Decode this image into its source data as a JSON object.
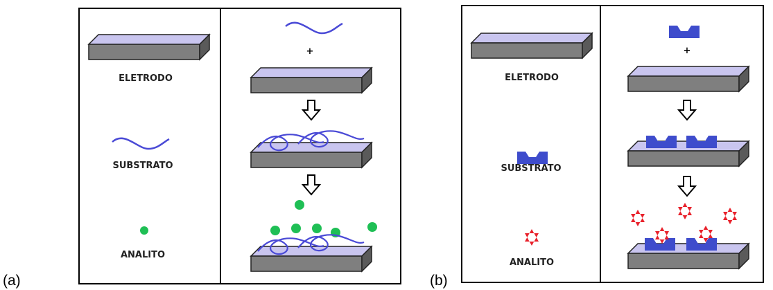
{
  "panels": [
    {
      "label": "(a)",
      "legend": [
        "ELETRODO",
        "SUBSTRATO",
        "ANALITO"
      ],
      "plus": "+"
    },
    {
      "label": "(b)",
      "legend": [
        "ELETRODO",
        "SUBSTRATO",
        "ANALITO"
      ],
      "plus": "+"
    }
  ]
}
